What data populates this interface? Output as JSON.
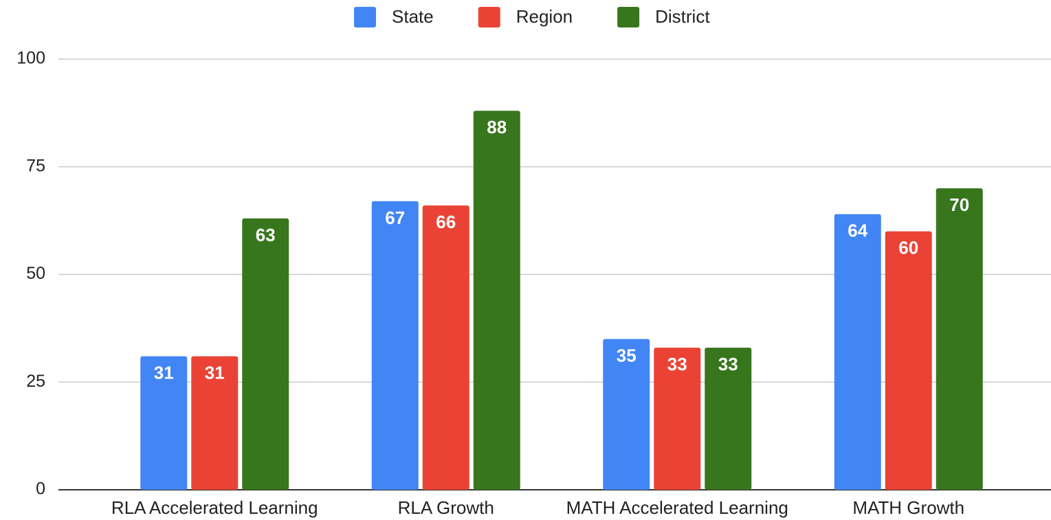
{
  "chart_data": {
    "type": "bar",
    "categories": [
      "RLA Accelerated Learning",
      "RLA Growth",
      "MATH Accelerated Learning",
      "MATH Growth"
    ],
    "series": [
      {
        "name": "State",
        "color": "#4285f4",
        "values": [
          31,
          67,
          35,
          64
        ]
      },
      {
        "name": "Region",
        "color": "#ea4335",
        "values": [
          31,
          66,
          33,
          60
        ]
      },
      {
        "name": "District",
        "color": "#38761d",
        "values": [
          63,
          88,
          33,
          70
        ]
      }
    ],
    "ylim": [
      0,
      100
    ],
    "yticks": [
      0,
      25,
      50,
      75,
      100
    ],
    "grid": true,
    "legend": "top"
  }
}
